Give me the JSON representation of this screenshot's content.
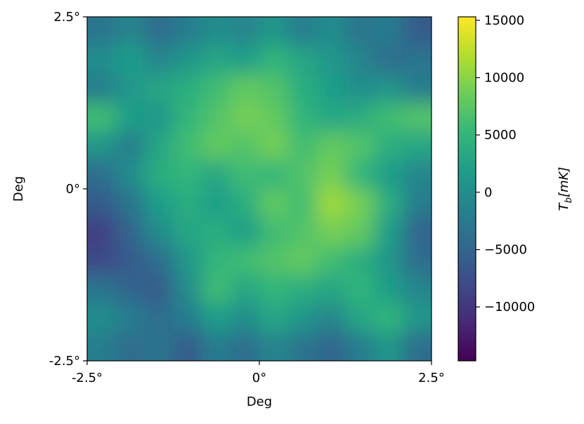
{
  "chart_data": {
    "type": "heatmap",
    "xlabel": "Deg",
    "ylabel": "Deg",
    "xlim": [
      -2.5,
      2.5
    ],
    "ylim": [
      -2.5,
      2.5
    ],
    "xticks": [
      {
        "value": -2.5,
        "label": "-2.5°"
      },
      {
        "value": 0,
        "label": "0°"
      },
      {
        "value": 2.5,
        "label": "2.5°"
      }
    ],
    "yticks": [
      {
        "value": -2.5,
        "label": "-2.5°"
      },
      {
        "value": 0,
        "label": "0°"
      },
      {
        "value": 2.5,
        "label": "2.5°"
      }
    ],
    "colormap": "viridis",
    "clim": [
      -14700,
      15300
    ],
    "colorbar_ticks": [
      {
        "value": -10000,
        "label": "−10000"
      },
      {
        "value": -5000,
        "label": "−5000"
      },
      0,
      5000,
      10000,
      15000
    ],
    "colorbar_label": {
      "symbol": "T",
      "subscript": "b",
      "unit": "[mK]"
    },
    "z": [
      [
        -3000,
        -1000,
        -4000,
        -2000,
        0,
        -1000,
        1000,
        -2000,
        0,
        -3000,
        -2000,
        -6000
      ],
      [
        0,
        2000,
        -1000,
        1000,
        3000,
        2000,
        5000,
        3000,
        1000,
        -1000,
        -4000,
        -3000
      ],
      [
        -2000,
        1000,
        3000,
        4000,
        6000,
        8000,
        7000,
        4000,
        2000,
        0,
        1000,
        -2000
      ],
      [
        6000,
        2000,
        1000,
        5000,
        7000,
        9000,
        8000,
        5000,
        3000,
        4000,
        6000,
        7000
      ],
      [
        1000,
        -2000,
        3000,
        6000,
        8000,
        7000,
        9000,
        6000,
        8000,
        7000,
        4000,
        3000
      ],
      [
        -4000,
        0,
        4000,
        5000,
        3000,
        6000,
        5000,
        7000,
        9000,
        5000,
        2000,
        -1000
      ],
      [
        -6000,
        -3000,
        2000,
        4000,
        2000,
        4000,
        8000,
        6000,
        11000,
        9000,
        4000,
        -2000
      ],
      [
        -9000,
        -5000,
        0,
        3000,
        4000,
        2000,
        6000,
        7000,
        9000,
        8000,
        2000,
        -5000
      ],
      [
        -8000,
        -6000,
        -4000,
        1000,
        5000,
        6000,
        7000,
        8000,
        6000,
        4000,
        1000,
        -4000
      ],
      [
        -3000,
        -5000,
        -6000,
        0,
        6000,
        3000,
        5000,
        4000,
        3000,
        5000,
        2000,
        -1000
      ],
      [
        0,
        -2000,
        -4000,
        -2000,
        2000,
        0,
        3000,
        1000,
        -1000,
        3000,
        5000,
        1000
      ],
      [
        -2000,
        -4000,
        -3000,
        -6000,
        -2000,
        -4000,
        -1000,
        -3000,
        -5000,
        -2000,
        1000,
        -4000
      ]
    ]
  }
}
